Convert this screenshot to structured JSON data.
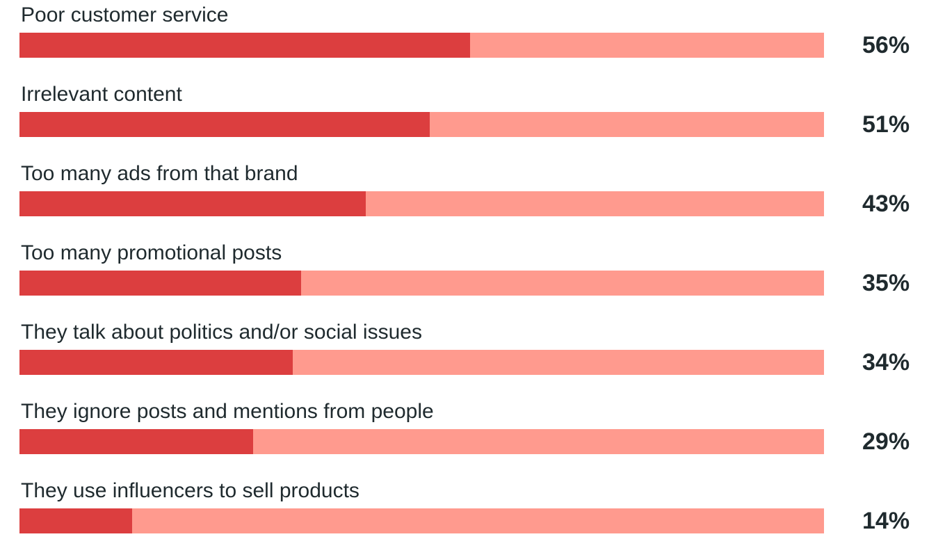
{
  "chart_data": {
    "type": "bar",
    "orientation": "horizontal",
    "categories": [
      "Poor customer service",
      "Irrelevant content",
      "Too many ads from that brand",
      "Too many promotional posts",
      "They talk about politics and/or social issues",
      "They ignore posts and mentions from people",
      "They use influencers to sell products"
    ],
    "values": [
      56,
      51,
      43,
      35,
      34,
      29,
      14
    ],
    "value_labels": [
      "56%",
      "51%",
      "43%",
      "35%",
      "34%",
      "29%",
      "14%"
    ],
    "xlim": [
      0,
      100
    ],
    "grid": false,
    "legend": "none",
    "colors": {
      "bar_fill": "#dc3e3f",
      "bar_track": "#ff9a8e",
      "text": "#1f2a2e"
    }
  }
}
